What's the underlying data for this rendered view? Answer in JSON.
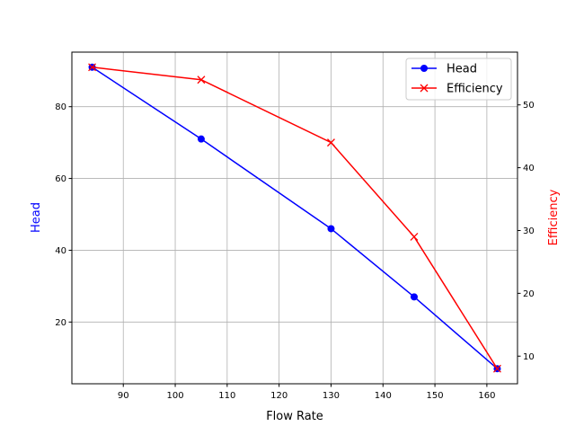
{
  "chart_data": {
    "type": "line",
    "title": "",
    "xlabel": "Flow Rate",
    "ylabel_left": "Head",
    "ylabel_right": "Efficiency",
    "x": [
      84,
      105,
      130,
      146,
      162
    ],
    "xlim": [
      80.1,
      165.9
    ],
    "ylim_left": [
      2.8,
      95.2
    ],
    "ylim_right": [
      5.6,
      58.4
    ],
    "xticks": [
      90,
      100,
      110,
      120,
      130,
      140,
      150,
      160
    ],
    "yticks_left": [
      20,
      40,
      60,
      80
    ],
    "yticks_right": [
      10,
      20,
      30,
      40,
      50
    ],
    "grid": true,
    "legend_placement": "top-right",
    "series": [
      {
        "name": "Head",
        "axis": "left",
        "values": [
          91,
          71,
          46,
          27,
          7
        ],
        "color": "#0000ff",
        "marker": "circle"
      },
      {
        "name": "Efficiency",
        "axis": "right",
        "values": [
          56,
          54,
          44,
          29,
          8
        ],
        "color": "#ff0000",
        "marker": "x"
      }
    ],
    "label_colors": {
      "left": "#0000ff",
      "right": "#ff0000"
    }
  }
}
